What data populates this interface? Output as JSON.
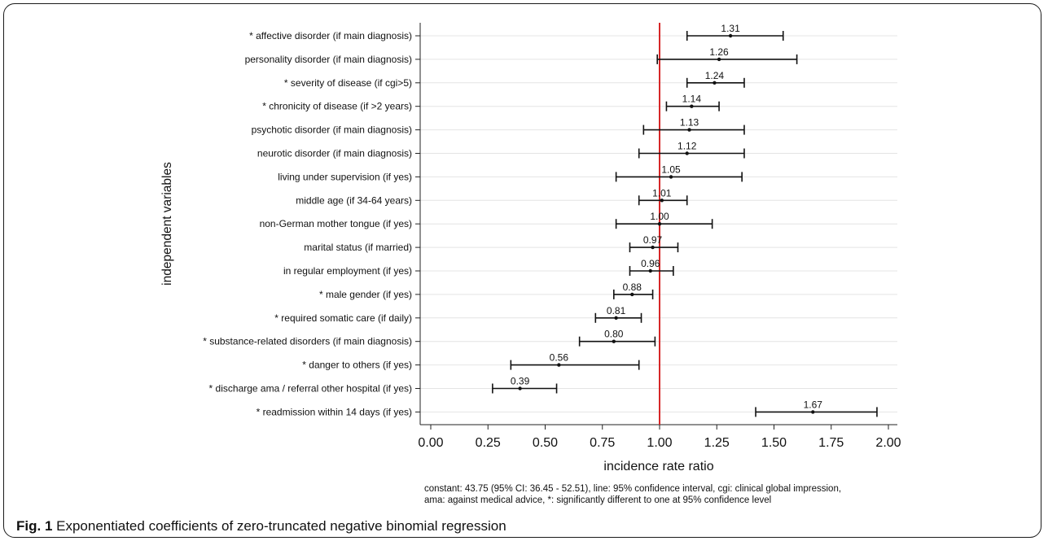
{
  "figure": {
    "label": "Fig. 1",
    "caption": "Exponentiated coefficients of zero-truncated negative binomial regression",
    "footnote_line1": "constant: 43.75 (95% CI: 36.45 - 52.51), line: 95% confidence interval, cgi: clinical global impression,",
    "footnote_line2": "ama: against medical advice, *: significantly different to one at 95% confidence level"
  },
  "chart_data": {
    "type": "forest",
    "xlabel": "incidence rate ratio",
    "ylabel": "independent variables",
    "xlim": [
      0.0,
      2.0
    ],
    "xticks": [
      "0.00",
      "0.25",
      "0.50",
      "0.75",
      "1.00",
      "1.25",
      "1.50",
      "1.75",
      "2.00"
    ],
    "reference_line": 1.0,
    "reference_color": "#d62728",
    "grid": true,
    "rows": [
      {
        "label": "* affective disorder (if main diagnosis)",
        "value": 1.31,
        "value_label": "1.31",
        "lo": 1.12,
        "hi": 1.54
      },
      {
        "label": "personality disorder (if main diagnosis)",
        "value": 1.26,
        "value_label": "1.26",
        "lo": 0.99,
        "hi": 1.6
      },
      {
        "label": "* severity of disease (if cgi>5)",
        "value": 1.24,
        "value_label": "1.24",
        "lo": 1.12,
        "hi": 1.37
      },
      {
        "label": "* chronicity of disease (if >2 years)",
        "value": 1.14,
        "value_label": "1.14",
        "lo": 1.03,
        "hi": 1.26
      },
      {
        "label": "psychotic disorder (if main diagnosis)",
        "value": 1.13,
        "value_label": "1.13",
        "lo": 0.93,
        "hi": 1.37
      },
      {
        "label": "neurotic disorder (if main diagnosis)",
        "value": 1.12,
        "value_label": "1.12",
        "lo": 0.91,
        "hi": 1.37
      },
      {
        "label": "living under supervision (if yes)",
        "value": 1.05,
        "value_label": "1.05",
        "lo": 0.81,
        "hi": 1.36
      },
      {
        "label": "middle age (if 34-64 years)",
        "value": 1.01,
        "value_label": "1.01",
        "lo": 0.91,
        "hi": 1.12
      },
      {
        "label": "non-German mother tongue (if yes)",
        "value": 1.0,
        "value_label": "1.00",
        "lo": 0.81,
        "hi": 1.23
      },
      {
        "label": "marital status (if married)",
        "value": 0.97,
        "value_label": "0.97",
        "lo": 0.87,
        "hi": 1.08
      },
      {
        "label": "in regular employment (if yes)",
        "value": 0.96,
        "value_label": "0.96",
        "lo": 0.87,
        "hi": 1.06
      },
      {
        "label": "* male gender (if yes)",
        "value": 0.88,
        "value_label": "0.88",
        "lo": 0.8,
        "hi": 0.97
      },
      {
        "label": "* required somatic care (if daily)",
        "value": 0.81,
        "value_label": "0.81",
        "lo": 0.72,
        "hi": 0.92
      },
      {
        "label": "* substance-related disorders (if main diagnosis)",
        "value": 0.8,
        "value_label": "0.80",
        "lo": 0.65,
        "hi": 0.98
      },
      {
        "label": "* danger to others (if yes)",
        "value": 0.56,
        "value_label": "0.56",
        "lo": 0.35,
        "hi": 0.91
      },
      {
        "label": "* discharge ama / referral other hospital (if yes)",
        "value": 0.39,
        "value_label": "0.39",
        "lo": 0.27,
        "hi": 0.55
      },
      {
        "label": "* readmission within 14 days (if yes)",
        "value": 1.67,
        "value_label": "1.67",
        "lo": 1.42,
        "hi": 1.95
      }
    ]
  }
}
